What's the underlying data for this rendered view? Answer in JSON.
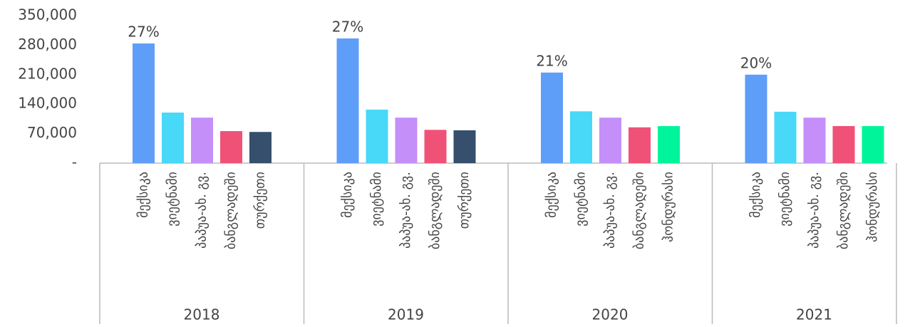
{
  "chart_data": {
    "type": "bar",
    "ylim": [
      0,
      350000
    ],
    "yticks": [
      {
        "value": 0,
        "label": "-"
      },
      {
        "value": 70000,
        "label": "70,000"
      },
      {
        "value": 140000,
        "label": "140,000"
      },
      {
        "value": 210000,
        "label": "210,000"
      },
      {
        "value": 280000,
        "label": "280,000"
      },
      {
        "value": 350000,
        "label": "350,000"
      }
    ],
    "groups": [
      {
        "name": "2018",
        "categories": [
          "მექსიკა",
          "ვიეტნამი",
          "პაპუა-ახ. გვ.",
          "ბანგლადეში",
          "თურქეთი"
        ],
        "values": [
          284000,
          120000,
          108000,
          76000,
          74000
        ],
        "colors": [
          "#5f9ef8",
          "#48d8f8",
          "#c58ff9",
          "#f05277",
          "#354f6c"
        ],
        "share": {
          "value": 27,
          "label": "27%"
        }
      },
      {
        "name": "2019",
        "categories": [
          "მექსიკა",
          "ვიეტნამი",
          "პაპუა-ახ. გვ.",
          "ბანგლადეში",
          "თურქეთი"
        ],
        "values": [
          296000,
          127000,
          108000,
          79000,
          78000
        ],
        "colors": [
          "#5f9ef8",
          "#48d8f8",
          "#c58ff9",
          "#f05277",
          "#354f6c"
        ],
        "share": {
          "value": 27,
          "label": "27%"
        }
      },
      {
        "name": "2020",
        "categories": [
          "მექსიკა",
          "ვიეტნამი",
          "პაპუა-ახ. გვ.",
          "ბანგლადეში",
          "ჰონდურასი"
        ],
        "values": [
          215000,
          123000,
          108000,
          85000,
          88000
        ],
        "colors": [
          "#5f9ef8",
          "#48d8f8",
          "#c58ff9",
          "#f05277",
          "#00f59a"
        ],
        "share": {
          "value": 21,
          "label": "21%"
        }
      },
      {
        "name": "2021",
        "categories": [
          "მექსიკა",
          "ვიეტნამი",
          "პაპუა-ახ. გვ.",
          "ბანგლადეში",
          "ჰონდურასი"
        ],
        "values": [
          210000,
          122000,
          108000,
          88000,
          88000
        ],
        "colors": [
          "#5f9ef8",
          "#48d8f8",
          "#c58ff9",
          "#f05277",
          "#00f59a"
        ],
        "share": {
          "value": 20,
          "label": "20%"
        }
      }
    ]
  }
}
